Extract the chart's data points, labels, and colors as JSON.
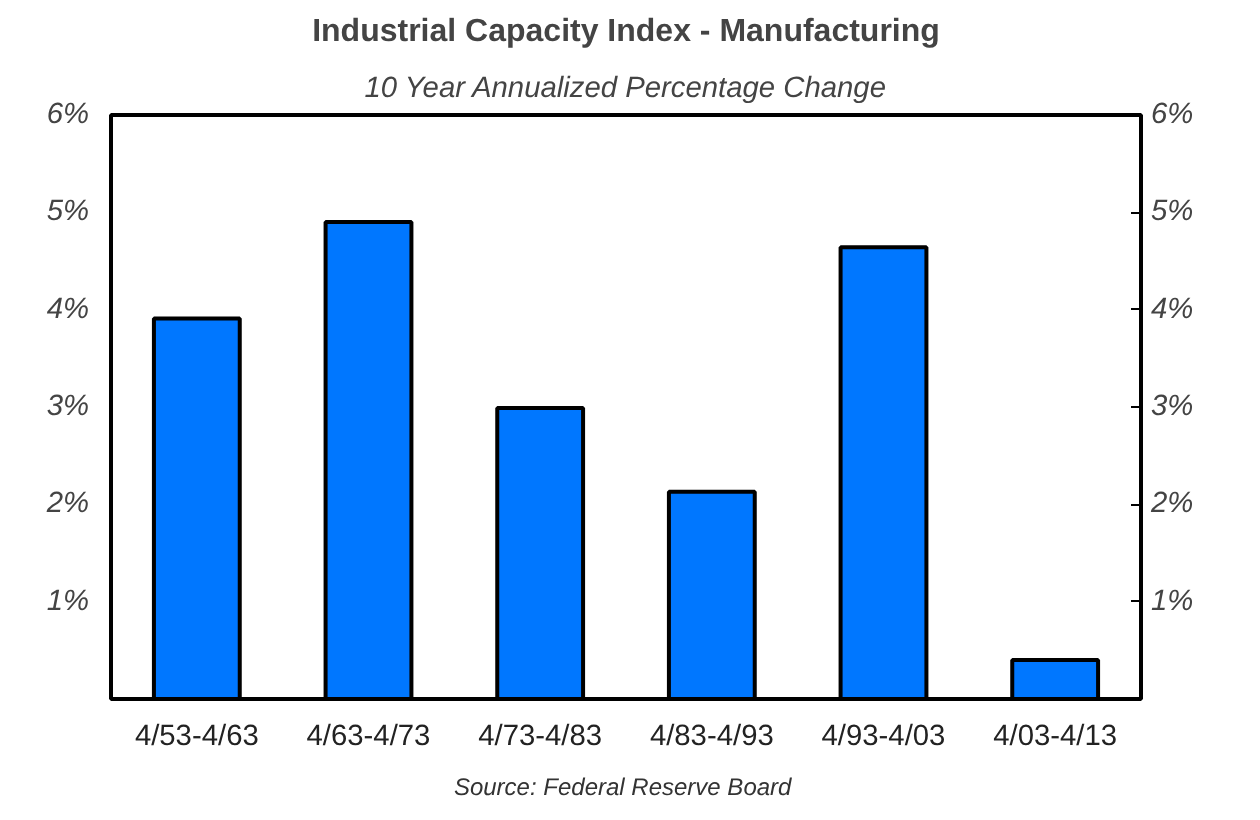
{
  "chart_data": {
    "type": "bar",
    "title": "Industrial Capacity Index - Manufacturing",
    "subtitle": "10 Year Annualized Percentage Change",
    "categories": [
      "4/53-4/63",
      "4/63-4/73",
      "4/73-4/83",
      "4/83-4/93",
      "4/93-4/03",
      "4/03-4/13"
    ],
    "values": [
      3.91,
      4.9,
      2.99,
      2.13,
      4.64,
      0.4
    ],
    "color": "#0077ff",
    "ylim": [
      0,
      6
    ],
    "yticks": [
      {
        "value": 1,
        "label": "1%"
      },
      {
        "value": 2,
        "label": "2%"
      },
      {
        "value": 3,
        "label": "3%"
      },
      {
        "value": 4,
        "label": "4%"
      },
      {
        "value": 5,
        "label": "5%"
      },
      {
        "value": 6,
        "label": "6%"
      }
    ],
    "y2lim": [
      0,
      6
    ],
    "y2ticks": [
      {
        "value": 1,
        "label": "1%"
      },
      {
        "value": 2,
        "label": "2%"
      },
      {
        "value": 3,
        "label": "3%"
      },
      {
        "value": 4,
        "label": "4%"
      },
      {
        "value": 5,
        "label": "5%"
      },
      {
        "value": 6,
        "label": "6%"
      }
    ],
    "grid": false,
    "annotations": [
      "Source:  Federal Reserve Board"
    ]
  }
}
